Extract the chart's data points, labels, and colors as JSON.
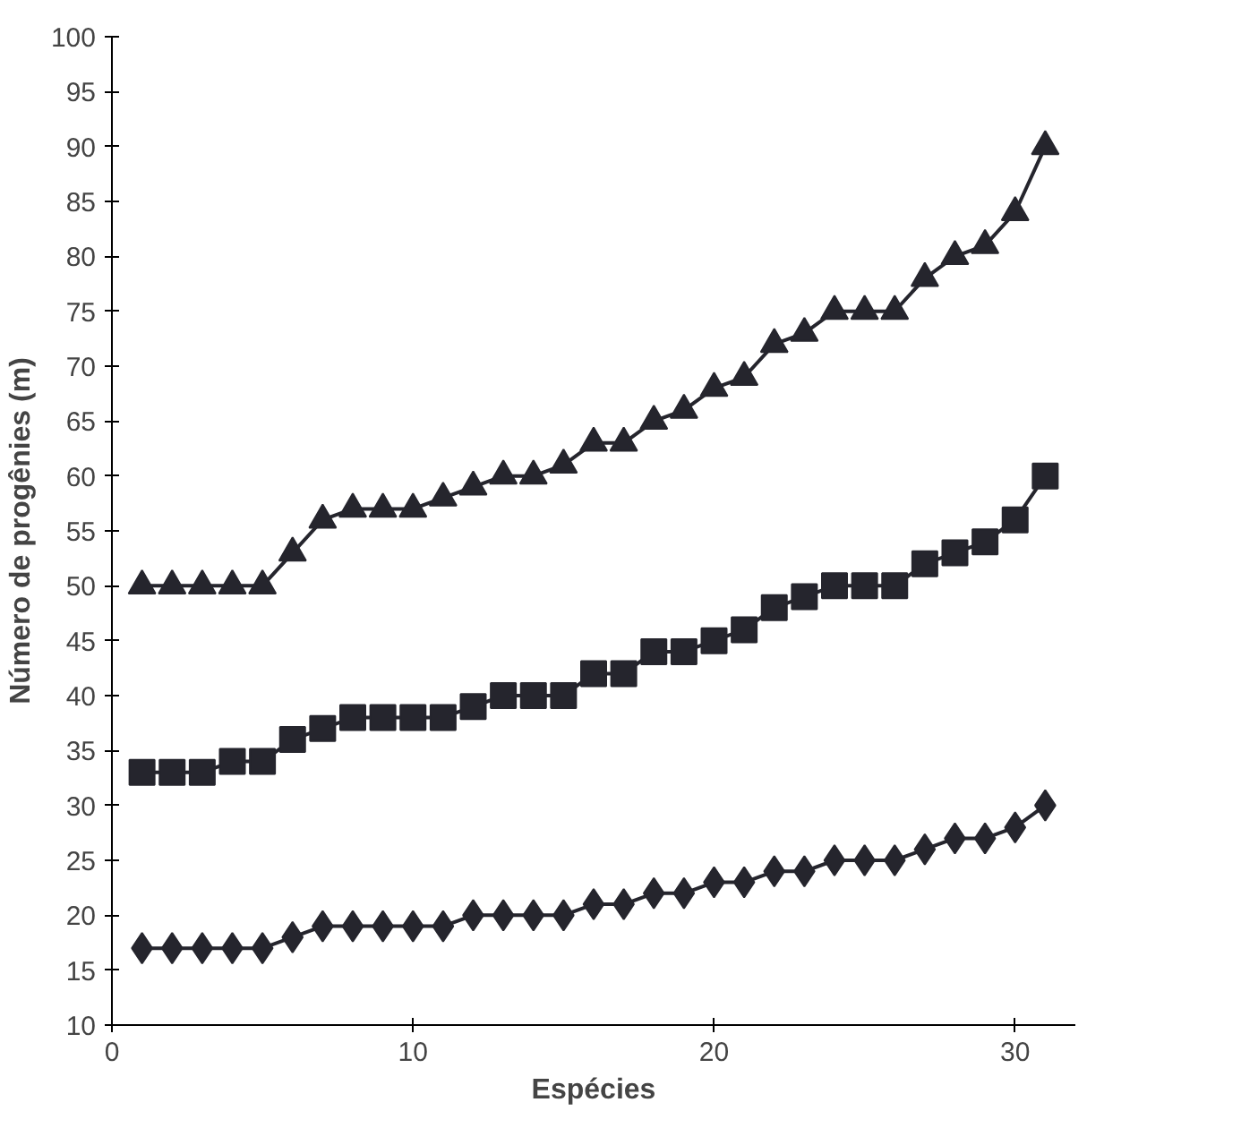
{
  "chart_data": {
    "type": "line",
    "xlabel": "Espécies",
    "ylabel": "Número de progênies (m)",
    "x": [
      1,
      2,
      3,
      4,
      5,
      6,
      7,
      8,
      9,
      10,
      11,
      12,
      13,
      14,
      15,
      16,
      17,
      18,
      19,
      20,
      21,
      22,
      23,
      24,
      25,
      26,
      27,
      28,
      29,
      30,
      31
    ],
    "series": [
      {
        "color": "#25252d",
        "marker": "triangle",
        "values": [
          50,
          50,
          50,
          50,
          50,
          53,
          56,
          57,
          57,
          57,
          58,
          59,
          60,
          60,
          61,
          63,
          63,
          65,
          66,
          68,
          69,
          72,
          73,
          75,
          75,
          75,
          78,
          80,
          81,
          84,
          90
        ]
      },
      {
        "color": "#25252d",
        "marker": "square",
        "values": [
          33,
          33,
          33,
          34,
          34,
          36,
          37,
          38,
          38,
          38,
          38,
          39,
          40,
          40,
          40,
          42,
          42,
          44,
          44,
          45,
          46,
          48,
          49,
          50,
          50,
          50,
          52,
          53,
          54,
          56,
          60
        ]
      },
      {
        "color": "#25252d",
        "marker": "diamond",
        "values": [
          17,
          17,
          17,
          17,
          17,
          18,
          19,
          19,
          19,
          19,
          19,
          20,
          20,
          20,
          20,
          21,
          21,
          22,
          22,
          23,
          23,
          24,
          24,
          25,
          25,
          25,
          26,
          27,
          27,
          28,
          30
        ]
      }
    ],
    "xlim": [
      0,
      32
    ],
    "xticks": [
      0,
      10,
      20,
      30
    ],
    "ylim": [
      10,
      100
    ],
    "yticks": [
      10,
      15,
      20,
      25,
      30,
      35,
      40,
      45,
      50,
      55,
      60,
      65,
      70,
      75,
      80,
      85,
      90,
      95,
      100
    ],
    "line_style": "solid"
  }
}
